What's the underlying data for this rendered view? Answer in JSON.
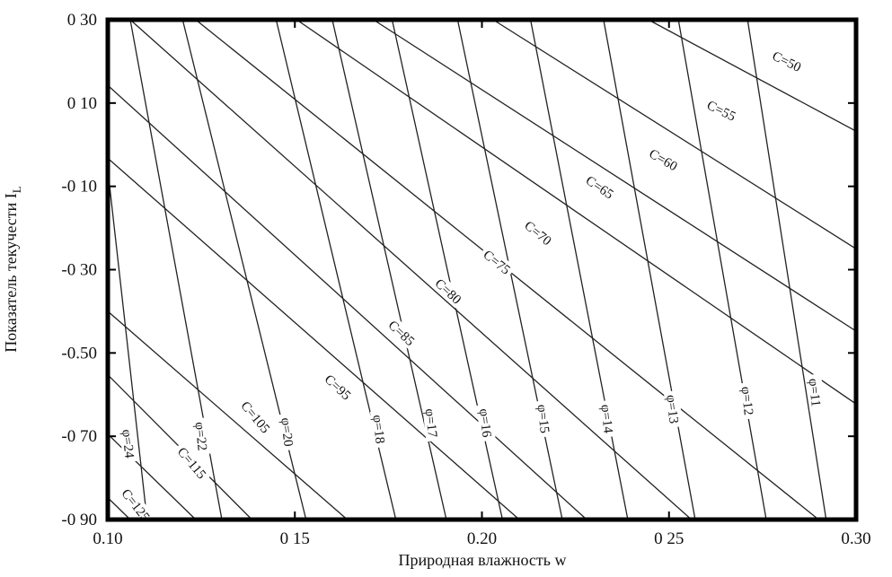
{
  "chart_data": {
    "type": "line",
    "title": "",
    "xlabel": "Природная влажность w",
    "ylabel": "Показатель текучести I",
    "ylabel_subscript": "L",
    "xlim": [
      0.1,
      0.3
    ],
    "ylim": [
      -0.9,
      0.3
    ],
    "x_ticks": [
      0.1,
      0.15,
      0.2,
      0.25,
      0.3
    ],
    "x_tick_labels": [
      "0.10",
      "0 15",
      "0.20",
      "0 25",
      "0.30"
    ],
    "y_ticks": [
      0.3,
      0.1,
      -0.1,
      -0.3,
      -0.5,
      -0.7,
      -0.9
    ],
    "y_tick_labels": [
      "0 30",
      "0 10",
      "-0 10",
      "-0 30",
      "-0.50",
      "-0 70",
      "-0 90"
    ],
    "grid": false,
    "frame_color": "#000000",
    "line_color": "#222222",
    "series": [
      {
        "name": "C=50",
        "family": "C",
        "points": [
          [
            0.2445,
            0.3
          ],
          [
            0.3,
            0.0325
          ]
        ]
      },
      {
        "name": "C=55",
        "family": "C",
        "points": [
          [
            0.203,
            0.3
          ],
          [
            0.3,
            -0.25
          ]
        ]
      },
      {
        "name": "C=60",
        "family": "C",
        "points": [
          [
            0.171,
            0.3
          ],
          [
            0.3,
            -0.4475
          ]
        ]
      },
      {
        "name": "C=65",
        "family": "C",
        "points": [
          [
            0.1505,
            0.3
          ],
          [
            0.3,
            -0.6225
          ]
        ]
      },
      {
        "name": "C=70",
        "family": "C",
        "points": [
          [
            0.1235,
            0.3
          ],
          [
            0.29,
            -0.9
          ]
        ]
      },
      {
        "name": "C=75",
        "family": "C",
        "points": [
          [
            0.106,
            0.3
          ],
          [
            0.256,
            -0.9
          ]
        ]
      },
      {
        "name": "C=80",
        "family": "C",
        "points": [
          [
            0.1,
            0.1425
          ],
          [
            0.228,
            -0.9
          ]
        ]
      },
      {
        "name": "C=85",
        "family": "C",
        "points": [
          [
            0.1,
            -0.0325
          ],
          [
            0.21,
            -0.9
          ]
        ]
      },
      {
        "name": "C=95",
        "family": "C",
        "points": [
          [
            0.1,
            -0.4
          ],
          [
            0.164,
            -0.9
          ]
        ]
      },
      {
        "name": "C=105",
        "family": "C",
        "points": [
          [
            0.1,
            -0.5525
          ],
          [
            0.1385,
            -0.9
          ]
        ]
      },
      {
        "name": "C=115",
        "family": "C",
        "points": [
          [
            0.1,
            -0.695
          ],
          [
            0.1235,
            -0.9
          ]
        ]
      },
      {
        "name": "C=125",
        "family": "C",
        "points": [
          [
            0.1,
            -0.8475
          ],
          [
            0.106,
            -0.9
          ]
        ]
      },
      {
        "name": "φ=11",
        "family": "phi",
        "points": [
          [
            0.271,
            0.3
          ],
          [
            0.292,
            -0.9
          ]
        ]
      },
      {
        "name": "φ=12",
        "family": "phi",
        "points": [
          [
            0.2525,
            0.3
          ],
          [
            0.276,
            -0.9
          ]
        ]
      },
      {
        "name": "φ=13",
        "family": "phi",
        "points": [
          [
            0.2325,
            0.3
          ],
          [
            0.257,
            -0.9
          ]
        ]
      },
      {
        "name": "φ=14",
        "family": "phi",
        "points": [
          [
            0.213,
            0.3
          ],
          [
            0.239,
            -0.9
          ]
        ]
      },
      {
        "name": "φ=15",
        "family": "phi",
        "points": [
          [
            0.1935,
            0.3
          ],
          [
            0.2215,
            -0.9
          ]
        ]
      },
      {
        "name": "φ=16",
        "family": "phi",
        "points": [
          [
            0.176,
            0.3
          ],
          [
            0.2055,
            -0.9
          ]
        ]
      },
      {
        "name": "φ=17",
        "family": "phi",
        "points": [
          [
            0.16,
            0.3
          ],
          [
            0.1905,
            -0.9
          ]
        ]
      },
      {
        "name": "φ=18",
        "family": "phi",
        "points": [
          [
            0.145,
            0.3
          ],
          [
            0.177,
            -0.9
          ]
        ]
      },
      {
        "name": "φ=20",
        "family": "phi",
        "points": [
          [
            0.12,
            0.3
          ],
          [
            0.153,
            -0.9
          ]
        ]
      },
      {
        "name": "φ=22",
        "family": "phi",
        "points": [
          [
            0.106,
            0.3
          ],
          [
            0.1305,
            -0.9
          ]
        ]
      },
      {
        "name": "φ=24",
        "family": "phi",
        "points": [
          [
            0.1,
            -0.06
          ],
          [
            0.1105,
            -0.9
          ]
        ]
      }
    ],
    "curve_labels": [
      {
        "text": "C=50",
        "x": 0.2815,
        "y": 0.2,
        "angle": 26
      },
      {
        "text": "C=55",
        "x": 0.264,
        "y": 0.082,
        "angle": 26
      },
      {
        "text": "C=60",
        "x": 0.2485,
        "y": -0.036,
        "angle": 30
      },
      {
        "text": "C=65",
        "x": 0.2315,
        "y": -0.102,
        "angle": 34
      },
      {
        "text": "C=70",
        "x": 0.215,
        "y": -0.212,
        "angle": 39
      },
      {
        "text": "C=75",
        "x": 0.204,
        "y": -0.282,
        "angle": 39
      },
      {
        "text": "C=80",
        "x": 0.191,
        "y": -0.352,
        "angle": 43
      },
      {
        "text": "C=85",
        "x": 0.1785,
        "y": -0.452,
        "angle": 43
      },
      {
        "text": "C=95",
        "x": 0.1615,
        "y": -0.582,
        "angle": 43
      },
      {
        "text": "C=105",
        "x": 0.1395,
        "y": -0.654,
        "angle": 50
      },
      {
        "text": "C=115",
        "x": 0.1225,
        "y": -0.764,
        "angle": 50
      },
      {
        "text": "C=125",
        "x": 0.1075,
        "y": -0.865,
        "angle": 52
      },
      {
        "text": "φ=11",
        "x": 0.289,
        "y": -0.595,
        "angle": 84
      },
      {
        "text": "φ=12",
        "x": 0.271,
        "y": -0.615,
        "angle": 84
      },
      {
        "text": "φ=13",
        "x": 0.251,
        "y": -0.635,
        "angle": 84
      },
      {
        "text": "φ=14",
        "x": 0.2335,
        "y": -0.658,
        "angle": 84
      },
      {
        "text": "φ=15",
        "x": 0.2165,
        "y": -0.658,
        "angle": 84
      },
      {
        "text": "φ=16",
        "x": 0.201,
        "y": -0.668,
        "angle": 84
      },
      {
        "text": "φ=17",
        "x": 0.1865,
        "y": -0.668,
        "angle": 84
      },
      {
        "text": "φ=18",
        "x": 0.1725,
        "y": -0.683,
        "angle": 84
      },
      {
        "text": "φ=20",
        "x": 0.148,
        "y": -0.69,
        "angle": 84
      },
      {
        "text": "φ=22",
        "x": 0.125,
        "y": -0.7,
        "angle": 84
      },
      {
        "text": "φ=24",
        "x": 0.1055,
        "y": -0.718,
        "angle": 84
      }
    ]
  }
}
